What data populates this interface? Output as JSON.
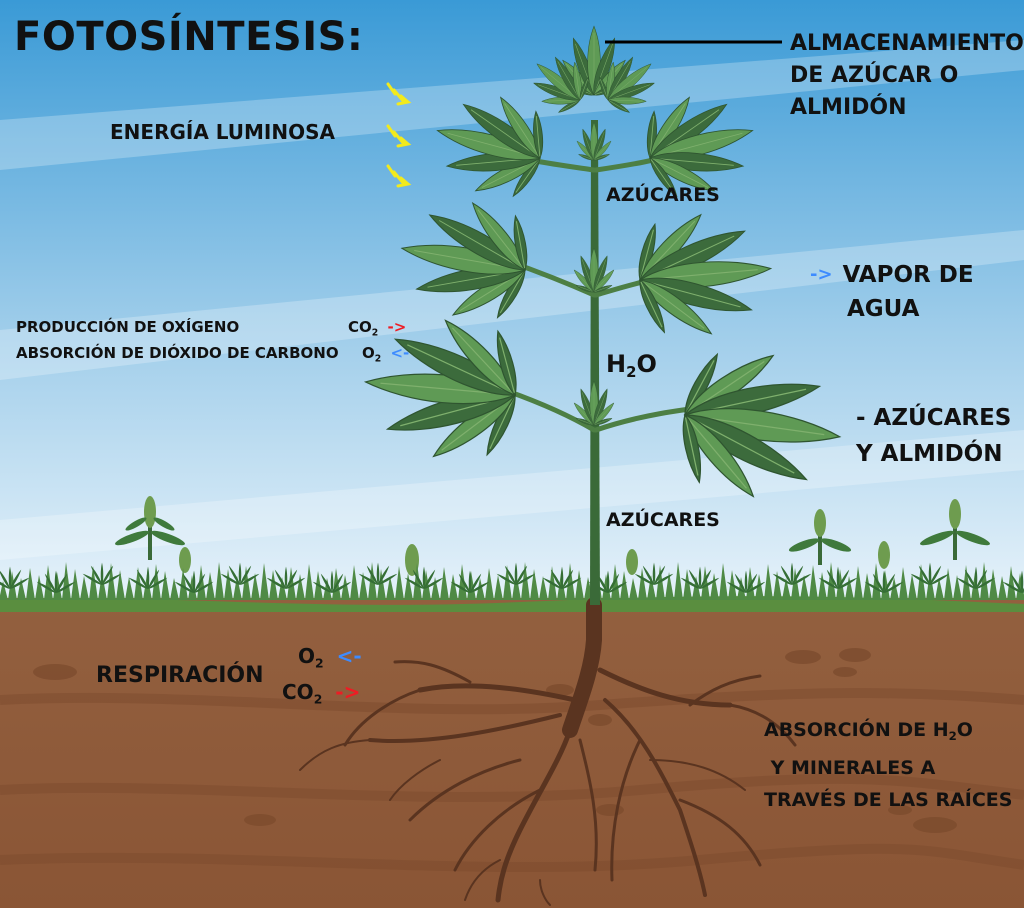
{
  "title": "FOTOSÍNTESIS:",
  "labels": {
    "storage_line1": "ALMACENAMIENTO",
    "storage_line2": "DE AZÚCAR O",
    "storage_line3": "ALMIDÓN",
    "light_energy": "ENERGÍA LUMINOSA",
    "sugars_top": "AZÚCARES",
    "water_vapor_line1": "VAPOR DE",
    "water_vapor_line2": "AGUA",
    "oxygen_production": "PRODUCCIÓN DE OXÍGENO",
    "co2_absorption": "ABSORCIÓN DE DIÓXIDO DE CARBONO",
    "co2_prefix": "CO",
    "o2_prefix": "O",
    "subscript_2": "2",
    "water_h": "H",
    "water_o": "O",
    "sugars_starch_line1": "- AZÚCARES",
    "sugars_starch_line2": "Y ALMIDÓN",
    "sugars_bottom": "AZÚCARES",
    "respiration": "RESPIRACIÓN",
    "roots_line1_pre": "ABSORCIÓN DE H",
    "roots_line1_post": "O",
    "roots_line2": " Y MINERALES A",
    "roots_line3": "TRAVÉS DE LAS RAÍCES"
  },
  "arrows": {
    "light": "->",
    "vapor": "->",
    "co2_out": "->",
    "o2_in": "<-",
    "resp_o2": "<-",
    "resp_co2": "->"
  },
  "colors": {
    "sky_top": "#3a9ad6",
    "sky_bottom": "#e6f2fa",
    "soil": "#8d5a3a",
    "soil_dark": "#6e4128",
    "grass": "#3f7a3c",
    "leaf": "#3c6b3c",
    "leaf_light": "#5f9a55",
    "stem": "#3a6a38",
    "root": "#5a3420",
    "arrow_yellow": "#f2ea1d",
    "arrow_blue": "#3d8bff",
    "arrow_red": "#ee1c24"
  }
}
